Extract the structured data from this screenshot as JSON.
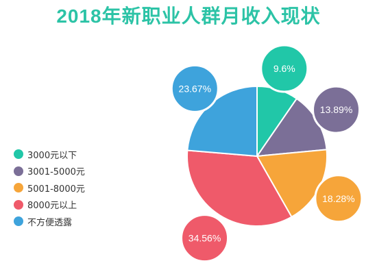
{
  "title": "2018年新职业人群月收入现状",
  "chart_data": {
    "type": "pie",
    "title": "2018年新职业人群月收入现状",
    "categories": [
      "3000元以下",
      "3001-5000元",
      "5001-8000元",
      "8000元以上",
      "不方便透露"
    ],
    "values": [
      9.6,
      13.89,
      18.28,
      34.56,
      23.67
    ],
    "labels": [
      "9.6%",
      "13.89%",
      "18.28%",
      "34.56%",
      "23.67%"
    ],
    "colors": [
      "#21c7a8",
      "#7b6f97",
      "#f6a53a",
      "#ef5a6a",
      "#3ea3dc"
    ],
    "legend_position": "left"
  }
}
